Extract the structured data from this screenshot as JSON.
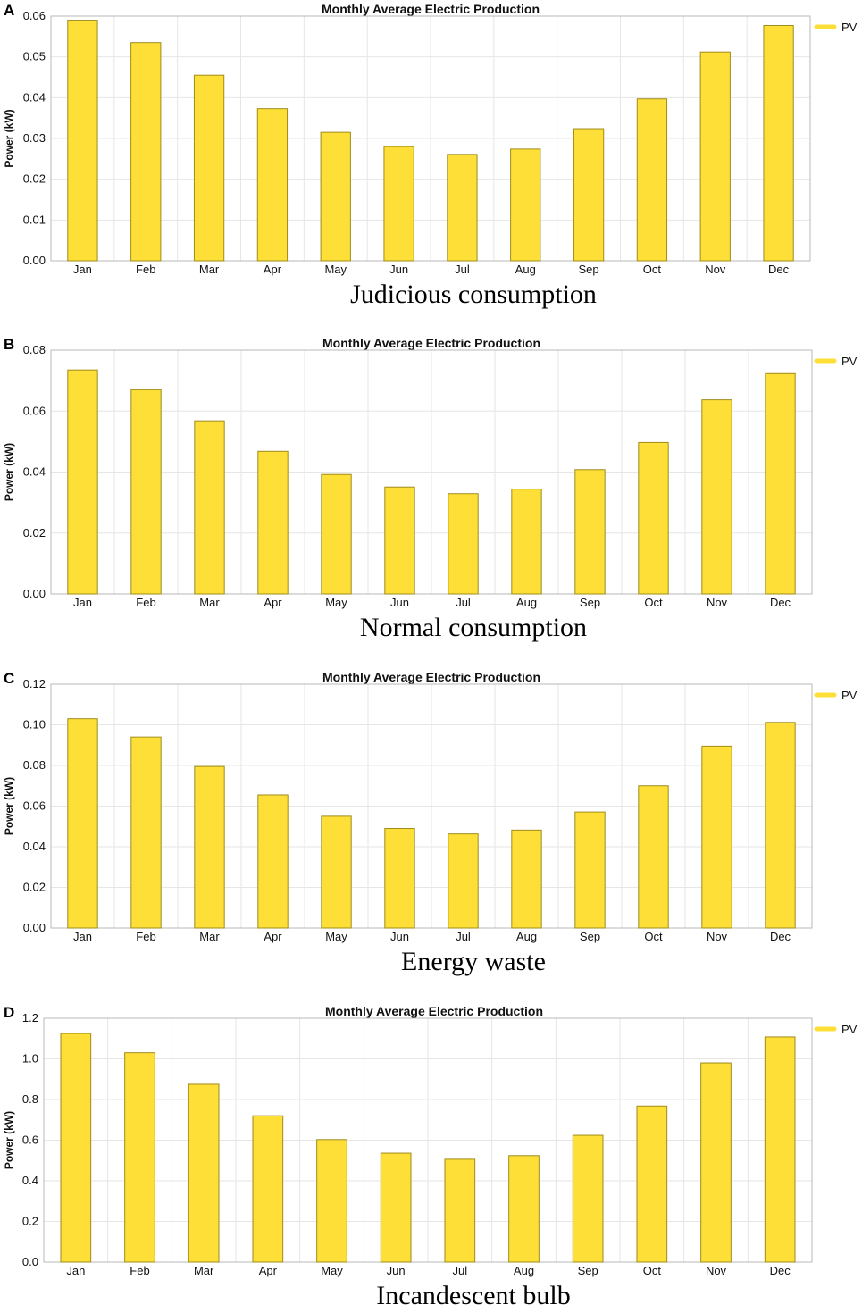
{
  "chart_data": [
    {
      "panel": "A",
      "type": "bar",
      "title": "Monthly Average Electric Production",
      "xlabel": "",
      "ylabel": "Power (kW)",
      "ylim": [
        0,
        0.06
      ],
      "yticks": [
        "0.00",
        "0.01",
        "0.02",
        "0.03",
        "0.04",
        "0.05",
        "0.06"
      ],
      "categories": [
        "Jan",
        "Feb",
        "Mar",
        "Apr",
        "May",
        "Jun",
        "Jul",
        "Aug",
        "Sep",
        "Oct",
        "Nov",
        "Dec"
      ],
      "series": [
        {
          "name": "PV",
          "color": "#fddf38",
          "values": [
            0.059,
            0.0535,
            0.0455,
            0.0373,
            0.0315,
            0.028,
            0.0261,
            0.0274,
            0.0324,
            0.0397,
            0.0512,
            0.0577
          ]
        }
      ],
      "legend": "top-right",
      "caption": "Judicious consumption"
    },
    {
      "panel": "B",
      "type": "bar",
      "title": "Monthly Average Electric Production",
      "xlabel": "",
      "ylabel": "Power (kW)",
      "ylim": [
        0,
        0.08
      ],
      "yticks": [
        "0.00",
        "0.02",
        "0.04",
        "0.06",
        "0.08"
      ],
      "categories": [
        "Jan",
        "Feb",
        "Mar",
        "Apr",
        "May",
        "Jun",
        "Jul",
        "Aug",
        "Sep",
        "Oct",
        "Nov",
        "Dec"
      ],
      "series": [
        {
          "name": "PV",
          "color": "#fddf38",
          "values": [
            0.0735,
            0.067,
            0.0568,
            0.0468,
            0.0392,
            0.0351,
            0.0329,
            0.0344,
            0.0408,
            0.0497,
            0.0637,
            0.0723
          ]
        }
      ],
      "legend": "top-right",
      "caption": "Normal consumption"
    },
    {
      "panel": "C",
      "type": "bar",
      "title": "Monthly Average Electric Production",
      "xlabel": "",
      "ylabel": "Power (kW)",
      "ylim": [
        0,
        0.12
      ],
      "yticks": [
        "0.00",
        "0.02",
        "0.04",
        "0.06",
        "0.08",
        "0.10",
        "0.12"
      ],
      "categories": [
        "Jan",
        "Feb",
        "Mar",
        "Apr",
        "May",
        "Jun",
        "Jul",
        "Aug",
        "Sep",
        "Oct",
        "Nov",
        "Dec"
      ],
      "series": [
        {
          "name": "PV",
          "color": "#fddf38",
          "values": [
            0.103,
            0.094,
            0.0795,
            0.0655,
            0.055,
            0.049,
            0.0463,
            0.0482,
            0.0571,
            0.07,
            0.0895,
            0.1012
          ]
        }
      ],
      "legend": "top-right",
      "caption": "Energy waste"
    },
    {
      "panel": "D",
      "type": "bar",
      "title": "Monthly Average Electric Production",
      "xlabel": "",
      "ylabel": "Power (kW)",
      "ylim": [
        0,
        1.2
      ],
      "yticks": [
        "0.0",
        "0.2",
        "0.4",
        "0.6",
        "0.8",
        "1.0",
        "1.2"
      ],
      "categories": [
        "Jan",
        "Feb",
        "Mar",
        "Apr",
        "May",
        "Jun",
        "Jul",
        "Aug",
        "Sep",
        "Oct",
        "Nov",
        "Dec"
      ],
      "series": [
        {
          "name": "PV",
          "color": "#fddf38",
          "values": [
            1.125,
            1.03,
            0.875,
            0.72,
            0.603,
            0.536,
            0.506,
            0.524,
            0.624,
            0.768,
            0.98,
            1.108
          ]
        }
      ],
      "legend": "top-right",
      "caption": "Incandescent bulb"
    }
  ]
}
